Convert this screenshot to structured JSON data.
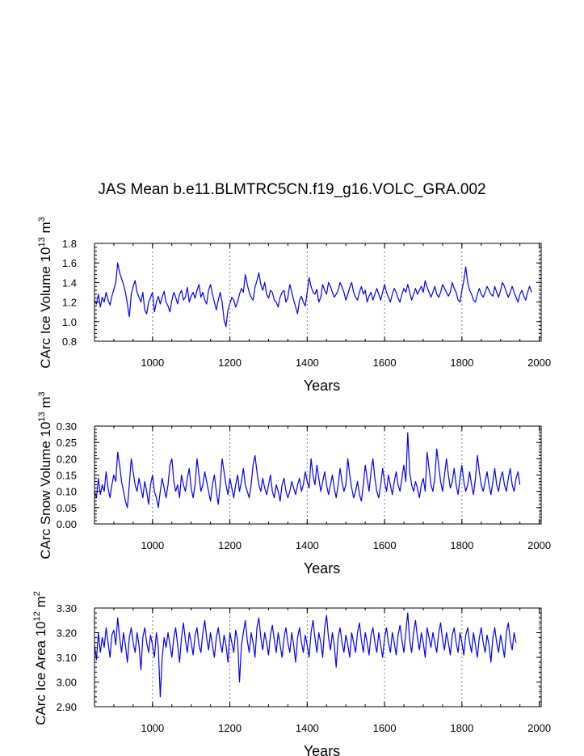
{
  "title": "JAS Mean b.e11.BLMTRC5CN.f19_g16.VOLC_GRA.002",
  "line_color": "#0000ff",
  "grid_color": "#808080",
  "chart_data": [
    {
      "type": "line",
      "ylabel_main": "CArc Ice Volume 10",
      "ylabel_exp": "13",
      "ylabel_unit": " m",
      "ylabel_unit_exp": "3",
      "xlabel": "Years",
      "xlim": [
        850,
        2005
      ],
      "ylim": [
        0.8,
        1.8
      ],
      "yticks": [
        "0.8",
        "1.0",
        "1.2",
        "1.4",
        "1.6",
        "1.8"
      ],
      "ytick_values": [
        0.8,
        1.0,
        1.2,
        1.4,
        1.6,
        1.8
      ],
      "xticks": [
        "1000",
        "1200",
        "1400",
        "1600",
        "1800",
        "2000"
      ],
      "xtick_values": [
        1000,
        1200,
        1400,
        1600,
        1800,
        2000
      ],
      "grid_x": [
        1000,
        1200,
        1400,
        1600,
        1800,
        2000
      ],
      "x_start": 850,
      "x_step": 5,
      "values": [
        1.22,
        1.18,
        1.28,
        1.15,
        1.25,
        1.2,
        1.3,
        1.22,
        1.17,
        1.26,
        1.33,
        1.4,
        1.6,
        1.5,
        1.44,
        1.38,
        1.3,
        1.18,
        1.05,
        1.28,
        1.36,
        1.42,
        1.3,
        1.25,
        1.2,
        1.3,
        1.12,
        1.08,
        1.2,
        1.25,
        1.3,
        1.1,
        1.2,
        1.26,
        1.18,
        1.25,
        1.31,
        1.2,
        1.16,
        1.1,
        1.22,
        1.3,
        1.25,
        1.18,
        1.28,
        1.32,
        1.22,
        1.25,
        1.35,
        1.2,
        1.26,
        1.3,
        1.24,
        1.32,
        1.38,
        1.25,
        1.3,
        1.22,
        1.18,
        1.32,
        1.38,
        1.28,
        1.2,
        1.12,
        1.22,
        1.3,
        1.2,
        1.02,
        0.95,
        1.12,
        1.18,
        1.25,
        1.22,
        1.15,
        1.2,
        1.28,
        1.34,
        1.3,
        1.48,
        1.38,
        1.3,
        1.25,
        1.22,
        1.35,
        1.42,
        1.5,
        1.38,
        1.32,
        1.4,
        1.28,
        1.24,
        1.32,
        1.3,
        1.22,
        1.2,
        1.15,
        1.25,
        1.3,
        1.32,
        1.2,
        1.25,
        1.38,
        1.3,
        1.22,
        1.15,
        1.08,
        1.22,
        1.26,
        1.2,
        1.16,
        1.3,
        1.45,
        1.36,
        1.3,
        1.28,
        1.33,
        1.2,
        1.25,
        1.38,
        1.32,
        1.28,
        1.4,
        1.36,
        1.3,
        1.25,
        1.28,
        1.32,
        1.4,
        1.35,
        1.3,
        1.22,
        1.28,
        1.35,
        1.4,
        1.3,
        1.25,
        1.22,
        1.3,
        1.36,
        1.28,
        1.32,
        1.2,
        1.26,
        1.3,
        1.22,
        1.28,
        1.34,
        1.28,
        1.22,
        1.3,
        1.38,
        1.3,
        1.25,
        1.2,
        1.28,
        1.34,
        1.3,
        1.24,
        1.2,
        1.28,
        1.34,
        1.3,
        1.38,
        1.3,
        1.22,
        1.28,
        1.34,
        1.28,
        1.32,
        1.36,
        1.3,
        1.42,
        1.35,
        1.3,
        1.25,
        1.3,
        1.36,
        1.28,
        1.25,
        1.3,
        1.38,
        1.34,
        1.3,
        1.26,
        1.3,
        1.4,
        1.34,
        1.3,
        1.22,
        1.2,
        1.32,
        1.42,
        1.56,
        1.4,
        1.32,
        1.28,
        1.22,
        1.2,
        1.28,
        1.34,
        1.28,
        1.25,
        1.3,
        1.36,
        1.32,
        1.28,
        1.26,
        1.36,
        1.3,
        1.25,
        1.32,
        1.4,
        1.36,
        1.3,
        1.25,
        1.3,
        1.36,
        1.3,
        1.25,
        1.2,
        1.28,
        1.32,
        1.26,
        1.22,
        1.3,
        1.36,
        1.3
      ],
      "series_name": "CArc Ice Volume"
    },
    {
      "type": "line",
      "ylabel_main": "CArc Snow Volume 10",
      "ylabel_exp": "13",
      "ylabel_unit": " m",
      "ylabel_unit_exp": "3",
      "xlabel": "Years",
      "xlim": [
        850,
        2005
      ],
      "ylim": [
        0.0,
        0.3
      ],
      "yticks": [
        "0.00",
        "0.05",
        "0.10",
        "0.15",
        "0.20",
        "0.25",
        "0.30"
      ],
      "ytick_values": [
        0.0,
        0.05,
        0.1,
        0.15,
        0.2,
        0.25,
        0.3
      ],
      "xticks": [
        "1000",
        "1200",
        "1400",
        "1600",
        "1800",
        "2000"
      ],
      "xtick_values": [
        1000,
        1200,
        1400,
        1600,
        1800,
        2000
      ],
      "grid_x": [
        1000,
        1200,
        1400,
        1600,
        1800,
        2000
      ],
      "x_start": 850,
      "x_step": 5,
      "values": [
        0.1,
        0.08,
        0.14,
        0.09,
        0.12,
        0.1,
        0.16,
        0.11,
        0.08,
        0.12,
        0.15,
        0.13,
        0.22,
        0.18,
        0.13,
        0.1,
        0.07,
        0.05,
        0.12,
        0.2,
        0.16,
        0.12,
        0.1,
        0.14,
        0.11,
        0.08,
        0.13,
        0.1,
        0.06,
        0.12,
        0.15,
        0.1,
        0.08,
        0.05,
        0.1,
        0.14,
        0.11,
        0.08,
        0.12,
        0.18,
        0.2,
        0.13,
        0.1,
        0.12,
        0.08,
        0.15,
        0.12,
        0.1,
        0.14,
        0.17,
        0.11,
        0.08,
        0.12,
        0.2,
        0.15,
        0.1,
        0.12,
        0.16,
        0.13,
        0.1,
        0.07,
        0.12,
        0.15,
        0.1,
        0.06,
        0.12,
        0.2,
        0.16,
        0.12,
        0.09,
        0.14,
        0.11,
        0.08,
        0.12,
        0.15,
        0.1,
        0.13,
        0.17,
        0.12,
        0.1,
        0.08,
        0.12,
        0.18,
        0.21,
        0.16,
        0.12,
        0.1,
        0.14,
        0.11,
        0.09,
        0.12,
        0.15,
        0.1,
        0.08,
        0.12,
        0.1,
        0.07,
        0.12,
        0.14,
        0.1,
        0.08,
        0.1,
        0.13,
        0.11,
        0.09,
        0.12,
        0.14,
        0.1,
        0.12,
        0.16,
        0.13,
        0.11,
        0.2,
        0.15,
        0.12,
        0.18,
        0.14,
        0.1,
        0.13,
        0.16,
        0.12,
        0.09,
        0.12,
        0.15,
        0.11,
        0.08,
        0.12,
        0.17,
        0.13,
        0.1,
        0.12,
        0.2,
        0.15,
        0.11,
        0.08,
        0.1,
        0.13,
        0.09,
        0.07,
        0.12,
        0.18,
        0.14,
        0.1,
        0.16,
        0.2,
        0.14,
        0.1,
        0.08,
        0.12,
        0.17,
        0.13,
        0.1,
        0.15,
        0.12,
        0.09,
        0.13,
        0.16,
        0.12,
        0.1,
        0.14,
        0.18,
        0.13,
        0.28,
        0.16,
        0.12,
        0.1,
        0.13,
        0.11,
        0.08,
        0.12,
        0.14,
        0.1,
        0.22,
        0.17,
        0.12,
        0.1,
        0.14,
        0.23,
        0.18,
        0.13,
        0.1,
        0.15,
        0.2,
        0.15,
        0.11,
        0.13,
        0.17,
        0.12,
        0.09,
        0.14,
        0.18,
        0.13,
        0.1,
        0.12,
        0.16,
        0.12,
        0.09,
        0.14,
        0.21,
        0.16,
        0.12,
        0.1,
        0.13,
        0.16,
        0.12,
        0.09,
        0.13,
        0.17,
        0.12,
        0.1,
        0.14,
        0.16,
        0.12,
        0.1,
        0.14,
        0.17,
        0.12,
        0.1,
        0.14,
        0.16,
        0.12
      ],
      "series_name": "CArc Snow Volume"
    },
    {
      "type": "line",
      "ylabel_main": "CArc Ice Area 10",
      "ylabel_exp": "12",
      "ylabel_unit": " m",
      "ylabel_unit_exp": "2",
      "xlabel": "Years",
      "xlim": [
        850,
        2005
      ],
      "ylim": [
        2.9,
        3.3
      ],
      "yticks": [
        "2.90",
        "3.00",
        "3.10",
        "3.20",
        "3.30"
      ],
      "ytick_values": [
        2.9,
        3.0,
        3.1,
        3.2,
        3.3
      ],
      "xticks": [
        "1000",
        "1200",
        "1400",
        "1600",
        "1800",
        "2000"
      ],
      "xtick_values": [
        1000,
        1200,
        1400,
        1600,
        1800,
        2000
      ],
      "grid_x": [
        1000,
        1200,
        1400,
        1600,
        1800,
        2000
      ],
      "x_start": 850,
      "x_step": 5,
      "values": [
        3.15,
        3.09,
        3.2,
        3.12,
        3.18,
        3.14,
        3.22,
        3.16,
        3.1,
        3.19,
        3.21,
        3.15,
        3.26,
        3.18,
        3.12,
        3.2,
        3.15,
        3.08,
        3.18,
        3.22,
        3.16,
        3.12,
        3.2,
        3.15,
        3.05,
        3.18,
        3.22,
        3.16,
        3.12,
        3.19,
        3.15,
        3.1,
        3.2,
        3.14,
        2.94,
        3.1,
        3.18,
        3.14,
        3.2,
        3.15,
        3.1,
        3.18,
        3.22,
        3.15,
        3.08,
        3.18,
        3.24,
        3.17,
        3.12,
        3.2,
        3.16,
        3.11,
        3.19,
        3.22,
        3.15,
        3.12,
        3.2,
        3.25,
        3.18,
        3.13,
        3.2,
        3.15,
        3.1,
        3.18,
        3.22,
        3.16,
        3.12,
        3.19,
        3.15,
        3.08,
        3.2,
        3.16,
        3.12,
        3.21,
        3.17,
        3.0,
        3.15,
        3.2,
        3.25,
        3.17,
        3.12,
        3.2,
        3.16,
        3.1,
        3.22,
        3.26,
        3.18,
        3.13,
        3.2,
        3.16,
        3.11,
        3.19,
        3.23,
        3.17,
        3.12,
        3.2,
        3.15,
        3.1,
        3.18,
        3.22,
        3.16,
        3.12,
        3.2,
        3.15,
        3.08,
        3.18,
        3.22,
        3.16,
        3.12,
        3.19,
        3.15,
        3.1,
        3.2,
        3.25,
        3.18,
        3.12,
        3.2,
        3.16,
        3.1,
        3.22,
        3.27,
        3.18,
        3.13,
        3.2,
        3.15,
        3.06,
        3.18,
        3.22,
        3.16,
        3.12,
        3.19,
        3.15,
        3.1,
        3.2,
        3.16,
        3.12,
        3.2,
        3.24,
        3.17,
        3.12,
        3.2,
        3.16,
        3.11,
        3.19,
        3.22,
        3.16,
        3.12,
        3.2,
        3.15,
        3.1,
        3.18,
        3.22,
        3.16,
        3.12,
        3.2,
        3.16,
        3.11,
        3.19,
        3.23,
        3.17,
        3.12,
        3.2,
        3.28,
        3.17,
        3.12,
        3.2,
        3.25,
        3.18,
        3.13,
        3.2,
        3.16,
        3.1,
        3.22,
        3.18,
        3.14,
        3.2,
        3.16,
        3.12,
        3.2,
        3.24,
        3.17,
        3.13,
        3.2,
        3.16,
        3.11,
        3.19,
        3.22,
        3.16,
        3.12,
        3.2,
        3.16,
        3.11,
        3.19,
        3.22,
        3.16,
        3.12,
        3.2,
        3.15,
        3.1,
        3.18,
        3.22,
        3.16,
        3.12,
        3.19,
        3.15,
        3.08,
        3.18,
        3.22,
        3.16,
        3.12,
        3.19,
        3.15,
        3.1,
        3.2,
        3.24,
        3.17,
        3.13,
        3.2,
        3.16
      ],
      "series_name": "CArc Ice Area"
    }
  ]
}
